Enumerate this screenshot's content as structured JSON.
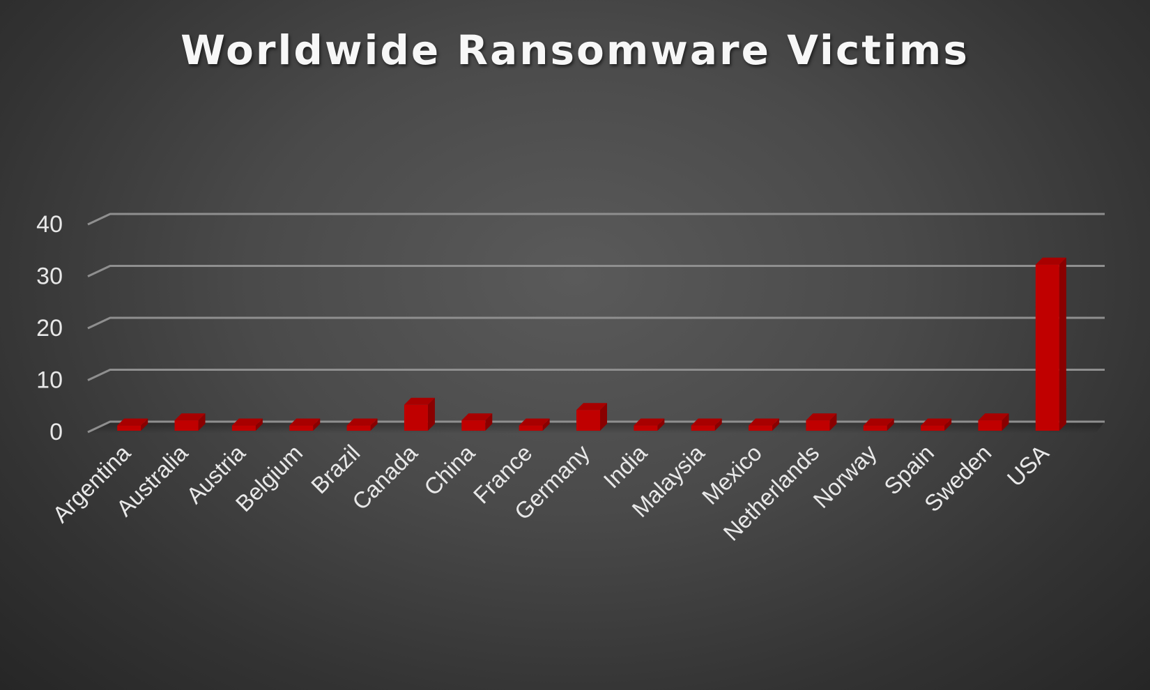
{
  "chart_data": {
    "type": "bar",
    "title": "Worldwide Ransomware Victims",
    "xlabel": "",
    "ylabel": "",
    "categories": [
      "Argentina",
      "Australia",
      "Austria",
      "Belgium",
      "Brazil",
      "Canada",
      "China",
      "France",
      "Germany",
      "India",
      "Malaysia",
      "Mexico",
      "Netherlands",
      "Norway",
      "Spain",
      "Sweden",
      "USA"
    ],
    "values": [
      1,
      2,
      1,
      1,
      1,
      5,
      2,
      1,
      4,
      1,
      1,
      1,
      2,
      1,
      1,
      2,
      32
    ],
    "ylim": [
      0,
      40
    ],
    "yticks": [
      "0",
      "10",
      "20",
      "30",
      "40"
    ],
    "grid": true,
    "legend": "none",
    "colors": {
      "bar": "#c00000",
      "bar_top": "#a80000",
      "bar_side": "#8a0000",
      "grid": "#8f8f8f",
      "text": "#e8e8e8"
    }
  }
}
